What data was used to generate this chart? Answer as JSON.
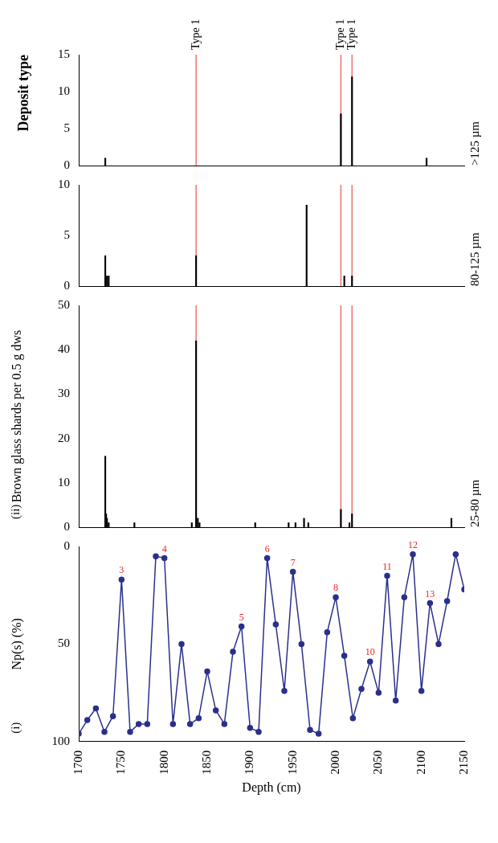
{
  "chart_data": [
    {
      "type": "bar",
      "title": "Deposit type",
      "annotations": [
        ">125 µm"
      ],
      "x": [
        1731,
        2006,
        2019,
        2106
      ],
      "values": [
        1,
        7,
        12,
        1
      ],
      "color": "#000000",
      "xlim": [
        1700,
        2150
      ],
      "ylim": [
        0,
        15
      ],
      "yticks": [
        0,
        5,
        10,
        15
      ],
      "tick_labels": "y",
      "grid": false,
      "legend": false,
      "ref_lines": [
        {
          "axis": "x",
          "value": 1837,
          "label": "Type 1",
          "color": "#f07070"
        },
        {
          "axis": "x",
          "value": 2006,
          "label": "Type 1",
          "color": "#f07070"
        },
        {
          "axis": "x",
          "value": 2019,
          "label": "Type 1",
          "color": "#f07070"
        }
      ]
    },
    {
      "type": "bar",
      "annotations": [
        "80-125 µm"
      ],
      "x": [
        1731,
        1733,
        1735,
        1837,
        1966,
        2010,
        2019
      ],
      "values": [
        3,
        1,
        1,
        3,
        8,
        1,
        1
      ],
      "color": "#000000",
      "xlim": [
        1700,
        2150
      ],
      "ylim": [
        0,
        10
      ],
      "yticks": [
        0,
        5,
        10
      ],
      "tick_labels": "y",
      "grid": false,
      "legend": false,
      "ref_lines": [
        {
          "axis": "x",
          "value": 1837,
          "color": "#f07070"
        },
        {
          "axis": "x",
          "value": 2006,
          "color": "#f07070"
        },
        {
          "axis": "x",
          "value": 2019,
          "color": "#f07070"
        }
      ]
    },
    {
      "type": "bar",
      "ylabel": "Brown glass shards per 0.5 g dws",
      "annotations": [
        "(ii)",
        "25-80 µm"
      ],
      "x": [
        1731,
        1732,
        1733,
        1735,
        1765,
        1832,
        1837,
        1839,
        1841,
        1906,
        1945,
        1953,
        1963,
        1968,
        2006,
        2016,
        2019,
        2135
      ],
      "values": [
        16,
        3,
        2,
        1,
        1,
        1,
        42,
        2,
        1,
        1,
        1,
        1,
        2,
        1,
        4,
        1,
        3,
        2
      ],
      "color": "#000000",
      "xlim": [
        1700,
        2150
      ],
      "ylim": [
        0,
        50
      ],
      "yticks": [
        0,
        10,
        20,
        30,
        40,
        50
      ],
      "tick_labels": "y",
      "grid": false,
      "legend": false,
      "ref_lines": [
        {
          "axis": "x",
          "value": 1837,
          "color": "#f07070"
        },
        {
          "axis": "x",
          "value": 2006,
          "color": "#f07070"
        },
        {
          "axis": "x",
          "value": 2019,
          "color": "#f07070"
        }
      ]
    },
    {
      "type": "line",
      "xlabel": "Depth (cm)",
      "ylabel": "Np(s) (%)",
      "marker": "circle",
      "grid": false,
      "legend": false,
      "x": [
        1700,
        1710,
        1720,
        1730,
        1740,
        1750,
        1760,
        1770,
        1780,
        1790,
        1800,
        1810,
        1820,
        1830,
        1840,
        1850,
        1860,
        1870,
        1880,
        1890,
        1900,
        1910,
        1920,
        1930,
        1940,
        1950,
        1960,
        1970,
        1980,
        1990,
        2000,
        2010,
        2020,
        2030,
        2040,
        2050,
        2060,
        2070,
        2080,
        2090,
        2100,
        2110,
        2120,
        2130,
        2140,
        2150
      ],
      "values": [
        96,
        89,
        83,
        95,
        87,
        17,
        95,
        91,
        91,
        5,
        6,
        91,
        50,
        91,
        88,
        64,
        84,
        91,
        54,
        41,
        93,
        95,
        6,
        40,
        74,
        13,
        50,
        94,
        96,
        44,
        26,
        56,
        88,
        73,
        59,
        75,
        15,
        79,
        26,
        4,
        74,
        29,
        50,
        28,
        4,
        22
      ],
      "color": "#2b2f8c",
      "xlim": [
        1700,
        2150
      ],
      "xticks": [
        1700,
        1750,
        1800,
        1850,
        1900,
        1950,
        2000,
        2050,
        2100,
        2150
      ],
      "ylim": [
        100,
        0
      ],
      "yticks": [
        0,
        50,
        100
      ],
      "annotations": [
        "(i)",
        {
          "text": "3",
          "x": 1750,
          "y": 17
        },
        {
          "text": "4",
          "x": 1800,
          "y": 6
        },
        {
          "text": "5",
          "x": 1890,
          "y": 41
        },
        {
          "text": "6",
          "x": 1920,
          "y": 6
        },
        {
          "text": "7",
          "x": 1950,
          "y": 13
        },
        {
          "text": "8",
          "x": 2000,
          "y": 26
        },
        {
          "text": "10",
          "x": 2040,
          "y": 59
        },
        {
          "text": "11",
          "x": 2060,
          "y": 15
        },
        {
          "text": "12",
          "x": 2090,
          "y": 4
        },
        {
          "text": "13",
          "x": 2110,
          "y": 29
        }
      ]
    }
  ]
}
